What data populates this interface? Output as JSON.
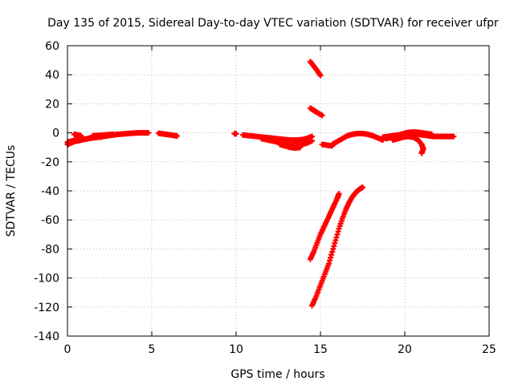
{
  "chart_data": {
    "type": "scatter",
    "title": "Day 135 of 2015, Sidereal Day-to-day VTEC variation (SDTVAR) for receiver ufpr",
    "xlabel": "GPS time / hours",
    "ylabel": "SDTVAR / TECUs",
    "xlim": [
      0,
      25
    ],
    "ylim": [
      -140,
      60
    ],
    "xticks": [
      "0",
      "5",
      "10",
      "15",
      "20",
      "25"
    ],
    "yticks": [
      "60",
      "40",
      "20",
      "0",
      "-20",
      "-40",
      "-60",
      "-80",
      "-100",
      "-120",
      "-140"
    ],
    "grid": true,
    "legend": "none",
    "color": "#ff0000",
    "marker": "plus",
    "segments": [
      {
        "points": [
          [
            0.0,
            -6.5
          ],
          [
            0.3,
            -5.5
          ],
          [
            0.6,
            -4.8
          ],
          [
            0.9,
            -4.5
          ],
          [
            1.2,
            -4
          ],
          [
            1.5,
            -3.5
          ],
          [
            1.8,
            -3
          ],
          [
            2.1,
            -2.5
          ],
          [
            2.4,
            -2
          ],
          [
            2.7,
            -1.5
          ],
          [
            3.0,
            -1
          ],
          [
            3.3,
            -0.8
          ],
          [
            3.6,
            -0.5
          ],
          [
            3.9,
            -0.2
          ],
          [
            4.2,
            0
          ],
          [
            4.5,
            0
          ],
          [
            4.8,
            0
          ]
        ]
      },
      {
        "points": [
          [
            0.0,
            -8
          ],
          [
            0.2,
            -7
          ],
          [
            0.4,
            -6
          ],
          [
            0.6,
            -5.5
          ],
          [
            0.8,
            -5
          ],
          [
            1.0,
            -4.5
          ],
          [
            1.2,
            -4
          ],
          [
            1.4,
            -3.5
          ],
          [
            1.6,
            -3.2
          ],
          [
            1.8,
            -3
          ],
          [
            2.0,
            -3
          ]
        ]
      },
      {
        "points": [
          [
            0.4,
            -1
          ],
          [
            0.6,
            -1.5
          ],
          [
            0.8,
            -2
          ]
        ]
      },
      {
        "points": [
          [
            1.5,
            -2
          ],
          [
            1.8,
            -1.8
          ],
          [
            2.1,
            -1.6
          ],
          [
            2.4,
            -1.3
          ],
          [
            2.7,
            -1
          ]
        ]
      },
      {
        "points": [
          [
            5.4,
            -0.3
          ],
          [
            5.7,
            -0.8
          ],
          [
            6.0,
            -1.3
          ],
          [
            6.3,
            -1.8
          ],
          [
            6.5,
            -2.2
          ]
        ]
      },
      {
        "points": [
          [
            9.9,
            -0.5
          ],
          [
            10.0,
            -0.7
          ]
        ]
      },
      {
        "points": [
          [
            10.4,
            -1.5
          ],
          [
            10.8,
            -2
          ],
          [
            11.2,
            -2.5
          ],
          [
            11.6,
            -3
          ],
          [
            12.0,
            -3.5
          ],
          [
            12.4,
            -4
          ],
          [
            12.8,
            -4.5
          ],
          [
            13.2,
            -5
          ],
          [
            13.6,
            -5
          ],
          [
            14.0,
            -4.5
          ],
          [
            14.3,
            -3.5
          ],
          [
            14.5,
            -2.5
          ]
        ]
      },
      {
        "points": [
          [
            11.5,
            -4
          ],
          [
            11.9,
            -5
          ],
          [
            12.3,
            -6
          ],
          [
            12.7,
            -7
          ],
          [
            13.1,
            -8
          ],
          [
            13.5,
            -8.5
          ],
          [
            13.9,
            -8
          ],
          [
            14.2,
            -7
          ],
          [
            14.5,
            -5.5
          ]
        ]
      },
      {
        "points": [
          [
            12.6,
            -8
          ],
          [
            12.9,
            -9
          ],
          [
            13.2,
            -10
          ],
          [
            13.5,
            -10.5
          ],
          [
            13.8,
            -10
          ]
        ]
      },
      {
        "points": [
          [
            14.4,
            49
          ],
          [
            14.6,
            46
          ],
          [
            14.8,
            43
          ],
          [
            15.0,
            39.5
          ]
        ]
      },
      {
        "points": [
          [
            14.4,
            17
          ],
          [
            14.6,
            15.5
          ],
          [
            14.8,
            14
          ],
          [
            15.1,
            12
          ]
        ]
      },
      {
        "points": [
          [
            15.1,
            -8
          ],
          [
            15.4,
            -8.5
          ],
          [
            15.7,
            -9
          ]
        ]
      },
      {
        "points": [
          [
            15.7,
            -8
          ],
          [
            16.0,
            -6
          ],
          [
            16.3,
            -4
          ],
          [
            16.6,
            -2
          ],
          [
            16.9,
            -1
          ],
          [
            17.2,
            -0.5
          ],
          [
            17.5,
            -0.5
          ],
          [
            17.8,
            -1
          ],
          [
            18.1,
            -2
          ],
          [
            18.4,
            -3.5
          ],
          [
            18.7,
            -5
          ]
        ]
      },
      {
        "points": [
          [
            18.7,
            -3
          ],
          [
            19.0,
            -2.5
          ],
          [
            19.3,
            -2
          ],
          [
            19.6,
            -1.5
          ],
          [
            19.9,
            -1
          ],
          [
            20.2,
            -0.5
          ],
          [
            20.5,
            -0.5
          ],
          [
            20.8,
            -1
          ],
          [
            21.1,
            -1.5
          ],
          [
            21.4,
            -2
          ],
          [
            21.7,
            -2.5
          ],
          [
            22.0,
            -2.5
          ],
          [
            22.3,
            -2.5
          ],
          [
            22.6,
            -2.5
          ],
          [
            22.9,
            -2.5
          ]
        ]
      },
      {
        "points": [
          [
            18.9,
            -4
          ],
          [
            19.2,
            -3
          ],
          [
            19.5,
            -2
          ],
          [
            19.8,
            -1
          ],
          [
            20.1,
            0
          ],
          [
            20.4,
            0.5
          ],
          [
            20.7,
            0.5
          ],
          [
            21.0,
            0
          ],
          [
            21.3,
            -0.5
          ],
          [
            21.6,
            -1
          ]
        ]
      },
      {
        "points": [
          [
            19.3,
            -5
          ],
          [
            19.6,
            -4
          ],
          [
            19.9,
            -3
          ],
          [
            20.2,
            -2.5
          ],
          [
            20.5,
            -3
          ],
          [
            20.8,
            -5
          ],
          [
            21.0,
            -8
          ],
          [
            21.1,
            -11
          ],
          [
            21.0,
            -14
          ]
        ]
      },
      {
        "points": [
          [
            14.4,
            -87
          ],
          [
            14.6,
            -82
          ],
          [
            14.8,
            -76
          ],
          [
            15.0,
            -70
          ],
          [
            15.2,
            -65
          ],
          [
            15.4,
            -60
          ],
          [
            15.6,
            -55
          ],
          [
            15.8,
            -50
          ],
          [
            16.0,
            -45
          ],
          [
            16.1,
            -42
          ]
        ]
      },
      {
        "points": [
          [
            14.5,
            -119
          ],
          [
            14.7,
            -114
          ],
          [
            14.9,
            -108
          ],
          [
            15.1,
            -102
          ],
          [
            15.3,
            -96
          ],
          [
            15.5,
            -90
          ],
          [
            15.7,
            -82
          ],
          [
            15.9,
            -74
          ],
          [
            16.1,
            -66
          ],
          [
            16.3,
            -59
          ],
          [
            16.5,
            -53
          ],
          [
            16.7,
            -48
          ],
          [
            16.9,
            -44
          ],
          [
            17.1,
            -41
          ],
          [
            17.3,
            -39
          ],
          [
            17.5,
            -37.5
          ]
        ]
      }
    ]
  }
}
